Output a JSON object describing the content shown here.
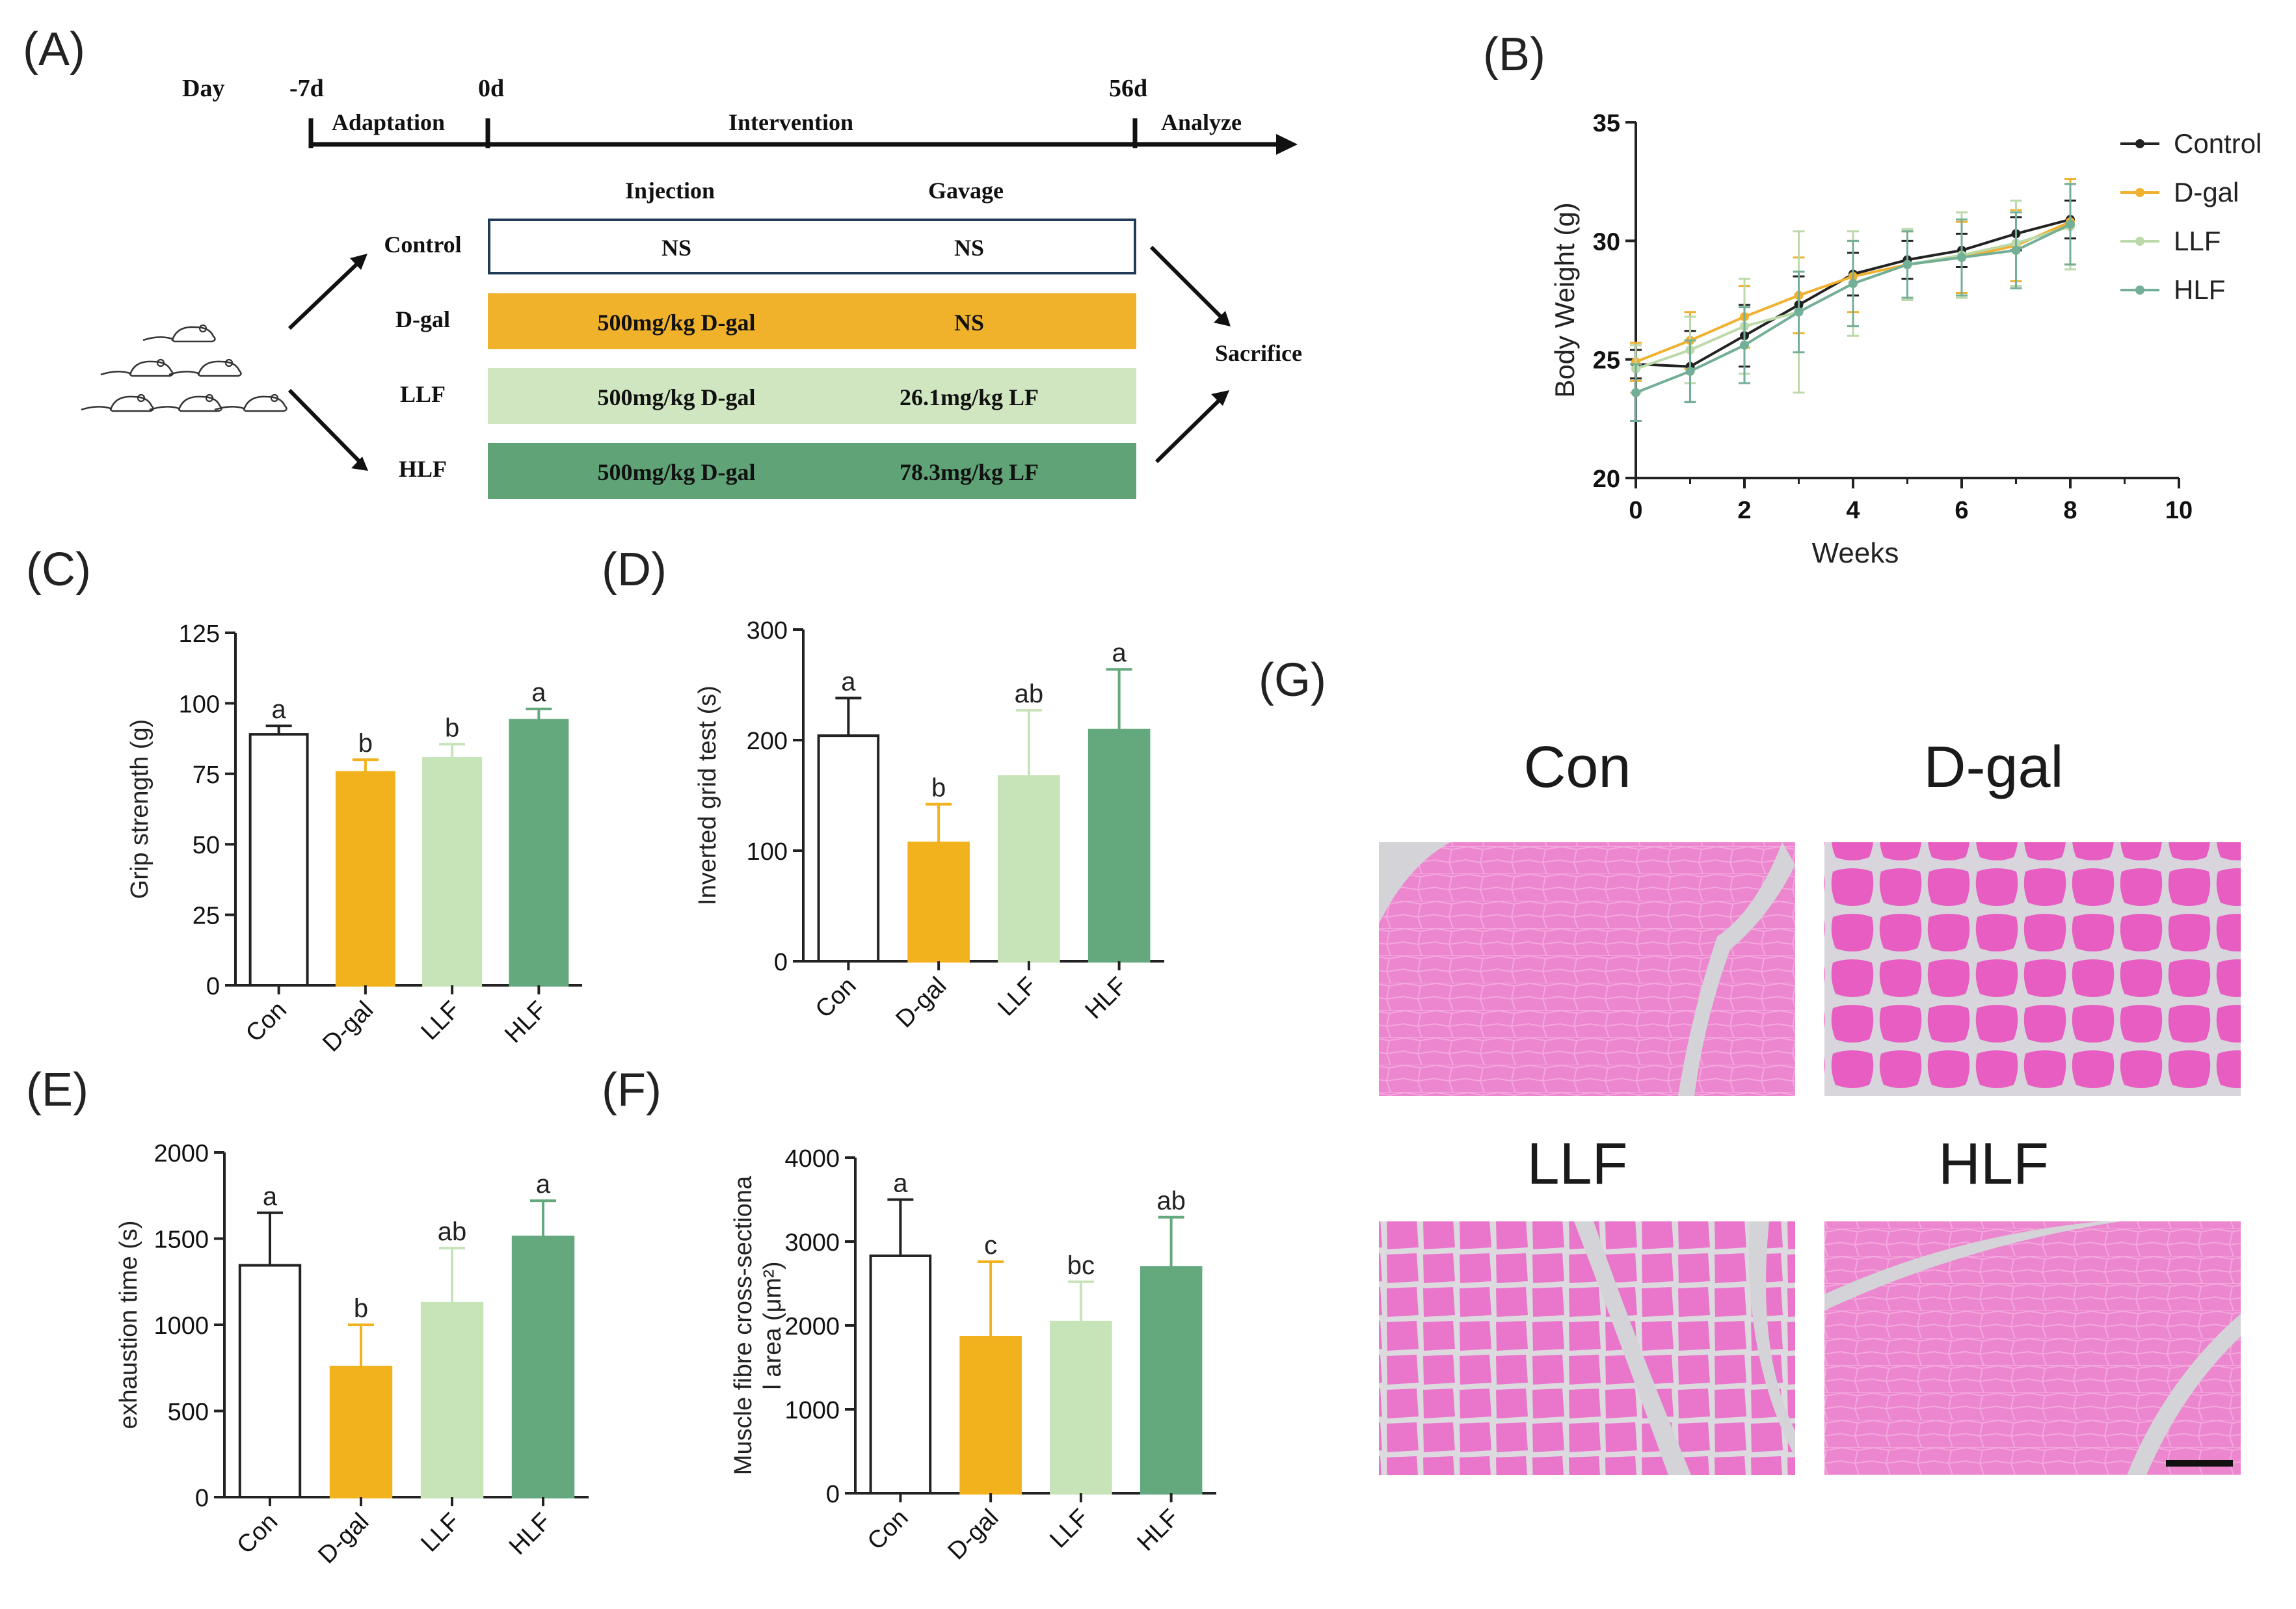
{
  "panel_labels": {
    "A": "(A)",
    "B": "(B)",
    "C": "(C)",
    "D": "(D)",
    "E": "(E)",
    "F": "(F)",
    "G": "(G)"
  },
  "schematic": {
    "timeline": {
      "day": "Day",
      "minus7": "-7d",
      "zero": "0d",
      "end": "56d",
      "adaptation": "Adaptation",
      "intervention": "Intervention",
      "analyze": "Analyze"
    },
    "col_injection": "Injection",
    "col_gavage": "Gavage",
    "sacrifice": "Sacrifice",
    "mouse_icon": "mouse-icon",
    "groups": [
      {
        "name": "Control",
        "injection": "NS",
        "gavage": "NS",
        "color": "#ffffff",
        "border": "#1f3b57"
      },
      {
        "name": "D-gal",
        "injection": "500mg/kg D-gal",
        "gavage": "NS",
        "color": "#efb22a",
        "border": "#efb22a"
      },
      {
        "name": "LLF",
        "injection": "500mg/kg D-gal",
        "gavage": "26.1mg/kg LF",
        "color": "#cfe6c0",
        "border": "#cfe6c0"
      },
      {
        "name": "HLF",
        "injection": "500mg/kg D-gal",
        "gavage": "78.3mg/kg LF",
        "color": "#5fa377",
        "border": "#5fa377"
      }
    ]
  },
  "colors": {
    "con": "#ffffff",
    "dgal": "#f2b21d",
    "llf": "#c7e3b8",
    "hlf": "#63a97d",
    "axis": "#222222",
    "control_line": "#222222"
  },
  "chart_data": [
    {
      "id": "B",
      "type": "line",
      "xlabel": "Weeks",
      "ylabel": "Body Weight (g)",
      "xlim": [
        0,
        10
      ],
      "ylim": [
        20,
        35
      ],
      "xticks": [
        "0",
        "2",
        "4",
        "6",
        "8",
        "10"
      ],
      "yticks": [
        "20",
        "25",
        "30",
        "35"
      ],
      "legend_position": "top-right",
      "x": [
        0,
        1,
        2,
        3,
        4,
        5,
        6,
        7,
        8
      ],
      "series": [
        {
          "name": "Control",
          "color": "#222222",
          "values": [
            24.8,
            24.7,
            26.0,
            27.3,
            28.6,
            29.2,
            29.6,
            30.3,
            30.9
          ],
          "err": [
            0.6,
            1.5,
            1.3,
            1.2,
            0.9,
            0.8,
            0.7,
            0.7,
            0.8
          ]
        },
        {
          "name": "D-gal",
          "color": "#f0b030",
          "values": [
            24.9,
            25.8,
            26.8,
            27.7,
            28.5,
            29.0,
            29.3,
            29.8,
            30.8
          ],
          "err": [
            0.8,
            1.2,
            1.3,
            1.6,
            1.5,
            1.4,
            1.5,
            1.5,
            1.8
          ]
        },
        {
          "name": "LLF",
          "color": "#bcd9a9",
          "values": [
            24.6,
            25.4,
            26.4,
            27.0,
            28.2,
            29.0,
            29.4,
            29.9,
            30.6
          ],
          "err": [
            1.0,
            1.4,
            2.0,
            3.4,
            2.2,
            1.5,
            1.8,
            1.8,
            1.8
          ]
        },
        {
          "name": "HLF",
          "color": "#73ae96",
          "values": [
            23.6,
            24.5,
            25.6,
            27.0,
            28.2,
            29.0,
            29.3,
            29.6,
            30.7
          ],
          "err": [
            1.2,
            1.3,
            1.6,
            1.7,
            1.8,
            1.4,
            1.6,
            1.6,
            1.7
          ]
        }
      ]
    },
    {
      "id": "C",
      "type": "bar",
      "ylabel": "Grip strength (g)",
      "ylim": [
        0,
        125
      ],
      "yticks": [
        "0",
        "25",
        "50",
        "75",
        "100",
        "125"
      ],
      "categories": [
        "Con",
        "D-gal",
        "LLF",
        "HLF"
      ],
      "values": [
        89,
        75.5,
        80.5,
        94
      ],
      "err": [
        3,
        4.5,
        5,
        4
      ],
      "labels": [
        "a",
        "b",
        "b",
        "a"
      ]
    },
    {
      "id": "D",
      "type": "bar",
      "ylabel": "Inverted grid test (s)",
      "ylim": [
        0,
        300
      ],
      "yticks": [
        "0",
        "100",
        "200",
        "300"
      ],
      "categories": [
        "Con",
        "D-gal",
        "LLF",
        "HLF"
      ],
      "values": [
        204,
        107,
        167,
        209
      ],
      "err": [
        34,
        35,
        60,
        55
      ],
      "labels": [
        "a",
        "b",
        "ab",
        "a"
      ]
    },
    {
      "id": "E",
      "type": "bar",
      "ylabel": "exhaustion time (s)",
      "ylim": [
        0,
        2000
      ],
      "yticks": [
        "0",
        "500",
        "1000",
        "1500",
        "2000"
      ],
      "categories": [
        "Con",
        "D-gal",
        "LLF",
        "HLF"
      ],
      "values": [
        1345,
        755,
        1125,
        1510
      ],
      "err": [
        305,
        245,
        320,
        210
      ],
      "labels": [
        "a",
        "b",
        "ab",
        "a"
      ]
    },
    {
      "id": "F",
      "type": "bar",
      "ylabel": "Muscle fibre cross-sectiona",
      "ylabel2": "l area (μm²)",
      "ylim": [
        0,
        4000
      ],
      "yticks": [
        "0",
        "1000",
        "2000",
        "3000",
        "4000"
      ],
      "categories": [
        "Con",
        "D-gal",
        "LLF",
        "HLF"
      ],
      "values": [
        2830,
        1860,
        2040,
        2690
      ],
      "err": [
        670,
        900,
        480,
        600
      ],
      "labels": [
        "a",
        "c",
        "bc",
        "ab"
      ]
    }
  ],
  "histology": {
    "labels": [
      "Con",
      "D-gal",
      "LLF",
      "HLF"
    ],
    "tissue_color": "#e878c8",
    "gap_color": "#d4d4d8"
  }
}
